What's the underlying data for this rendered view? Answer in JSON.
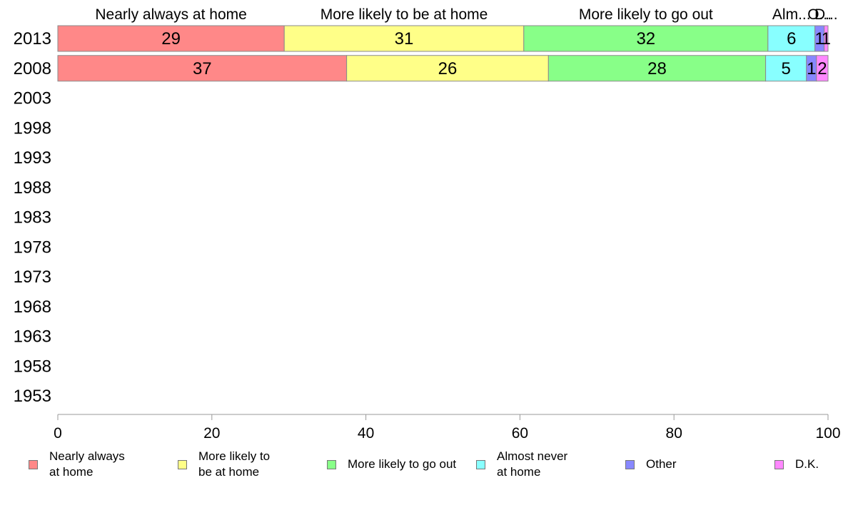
{
  "chart_data": {
    "type": "bar",
    "orientation": "horizontal",
    "stacked": true,
    "categories": [
      "2013",
      "2008",
      "2003",
      "1998",
      "1993",
      "1988",
      "1983",
      "1978",
      "1973",
      "1968",
      "1963",
      "1958",
      "1953"
    ],
    "series": [
      {
        "name": "Nearly always at home",
        "header_label": "Nearly always at home",
        "legend_label": "Nearly always\nat home",
        "color": "#ff8888",
        "values": [
          29.4,
          37.5,
          null,
          null,
          null,
          null,
          null,
          null,
          null,
          null,
          null,
          null,
          null
        ],
        "labels": [
          "29",
          "37",
          "",
          "",
          "",
          "",
          "",
          "",
          "",
          "",
          "",
          "",
          ""
        ]
      },
      {
        "name": "More likely to be at home",
        "header_label": "More likely to be at home",
        "legend_label": "More likely to\nbe at home",
        "color": "#ffff88",
        "values": [
          31.1,
          26.2,
          null,
          null,
          null,
          null,
          null,
          null,
          null,
          null,
          null,
          null,
          null
        ],
        "labels": [
          "31",
          "26",
          "",
          "",
          "",
          "",
          "",
          "",
          "",
          "",
          "",
          "",
          ""
        ]
      },
      {
        "name": "More likely to go out",
        "header_label": "More likely to go out",
        "legend_label": "More likely to go out",
        "color": "#88ff88",
        "values": [
          31.7,
          28.2,
          null,
          null,
          null,
          null,
          null,
          null,
          null,
          null,
          null,
          null,
          null
        ],
        "labels": [
          "32",
          "28",
          "",
          "",
          "",
          "",
          "",
          "",
          "",
          "",
          "",
          "",
          ""
        ]
      },
      {
        "name": "Almost never at home",
        "header_label": "Alm...",
        "legend_label": "Almost never\nat home",
        "color": "#88ffff",
        "values": [
          6.1,
          5.3,
          null,
          null,
          null,
          null,
          null,
          null,
          null,
          null,
          null,
          null,
          null
        ],
        "labels": [
          "6",
          "5",
          "",
          "",
          "",
          "",
          "",
          "",
          "",
          "",
          "",
          "",
          ""
        ]
      },
      {
        "name": "Other",
        "header_label": "O...",
        "legend_label": "Other",
        "color": "#8888ff",
        "values": [
          1.2,
          1.3,
          null,
          null,
          null,
          null,
          null,
          null,
          null,
          null,
          null,
          null,
          null
        ],
        "labels": [
          "1",
          "1",
          "",
          "",
          "",
          "",
          "",
          "",
          "",
          "",
          "",
          "",
          ""
        ]
      },
      {
        "name": "D.K.",
        "header_label": "D...",
        "legend_label": "D.K.",
        "color": "#ff88ff",
        "values": [
          0.5,
          1.5,
          null,
          null,
          null,
          null,
          null,
          null,
          null,
          null,
          null,
          null,
          null
        ],
        "labels": [
          "1",
          "2",
          "",
          "",
          "",
          "",
          "",
          "",
          "",
          "",
          "",
          "",
          ""
        ]
      }
    ],
    "xlim": [
      0,
      100
    ],
    "xticks": [
      0,
      20,
      40,
      60,
      80,
      100
    ],
    "grid": false,
    "legend_position": "bottom"
  }
}
